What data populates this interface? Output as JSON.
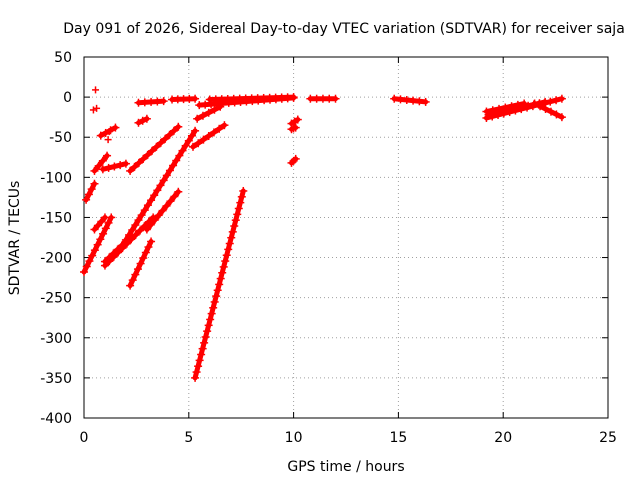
{
  "chart_data": {
    "type": "scatter",
    "title": "Day 091 of 2026, Sidereal Day-to-day VTEC variation (SDTVAR) for receiver saja",
    "xlabel": "GPS time / hours",
    "ylabel": "SDTVAR / TECUs",
    "xlim": [
      0,
      25
    ],
    "ylim": [
      -400,
      50
    ],
    "xticks": [
      0,
      5,
      10,
      15,
      20,
      25
    ],
    "yticks": [
      50,
      0,
      -50,
      -100,
      -150,
      -200,
      -250,
      -300,
      -350,
      -400
    ],
    "grid": true,
    "marker": "plus",
    "color": "#ff0000",
    "segments": [
      {
        "x": [
          5.3,
          7.6
        ],
        "y": [
          -350,
          -117
        ]
      },
      {
        "x": [
          0.0,
          1.3
        ],
        "y": [
          -218,
          -150
        ]
      },
      {
        "x": [
          0.1,
          0.5
        ],
        "y": [
          -128,
          -108
        ]
      },
      {
        "x": [
          0.5,
          1.1
        ],
        "y": [
          -92,
          -73
        ]
      },
      {
        "x": [
          0.8,
          1.5
        ],
        "y": [
          -48,
          -38
        ]
      },
      {
        "x": [
          0.9,
          2.0
        ],
        "y": [
          -90,
          -83
        ]
      },
      {
        "x": [
          1.0,
          3.3
        ],
        "y": [
          -210,
          -150
        ]
      },
      {
        "x": [
          2.2,
          4.5
        ],
        "y": [
          -92,
          -37
        ]
      },
      {
        "x": [
          2.0,
          5.3
        ],
        "y": [
          -178,
          -42
        ]
      },
      {
        "x": [
          2.2,
          3.2
        ],
        "y": [
          -235,
          -180
        ]
      },
      {
        "x": [
          3.0,
          4.5
        ],
        "y": [
          -165,
          -118
        ]
      },
      {
        "x": [
          1.0,
          2.2
        ],
        "y": [
          -205,
          -175
        ]
      },
      {
        "x": [
          0.5,
          1.0
        ],
        "y": [
          -165,
          -150
        ]
      },
      {
        "x": [
          2.6,
          3.0
        ],
        "y": [
          -32,
          -27
        ]
      },
      {
        "x": [
          2.6,
          3.8
        ],
        "y": [
          -7,
          -5
        ]
      },
      {
        "x": [
          4.2,
          5.3
        ],
        "y": [
          -3,
          -2
        ]
      },
      {
        "x": [
          5.2,
          6.7
        ],
        "y": [
          -62,
          -35
        ]
      },
      {
        "x": [
          5.4,
          6.5
        ],
        "y": [
          -27,
          -12
        ]
      },
      {
        "x": [
          5.5,
          10.0
        ],
        "y": [
          -10,
          -1
        ]
      },
      {
        "x": [
          6.0,
          10.0
        ],
        "y": [
          -3,
          0
        ]
      },
      {
        "x": [
          9.9,
          10.2
        ],
        "y": [
          -33,
          -28
        ]
      },
      {
        "x": [
          9.9,
          10.1
        ],
        "y": [
          -40,
          -38
        ]
      },
      {
        "x": [
          9.9,
          10.1
        ],
        "y": [
          -82,
          -77
        ]
      },
      {
        "x": [
          10.8,
          12.0
        ],
        "y": [
          -2,
          -2
        ]
      },
      {
        "x": [
          14.8,
          16.3
        ],
        "y": [
          -2,
          -6
        ]
      },
      {
        "x": [
          19.2,
          21.0
        ],
        "y": [
          -18,
          -8
        ]
      },
      {
        "x": [
          19.3,
          22.0
        ],
        "y": [
          -22,
          -6
        ]
      },
      {
        "x": [
          19.2,
          22.8
        ],
        "y": [
          -26,
          -2
        ]
      },
      {
        "x": [
          21.5,
          22.8
        ],
        "y": [
          -8,
          -25
        ]
      }
    ],
    "points": [
      {
        "x": 0.55,
        "y": 9
      },
      {
        "x": 0.45,
        "y": -16
      },
      {
        "x": 0.6,
        "y": -14
      },
      {
        "x": 1.15,
        "y": -53
      },
      {
        "x": 1.2,
        "y": -43
      }
    ]
  }
}
